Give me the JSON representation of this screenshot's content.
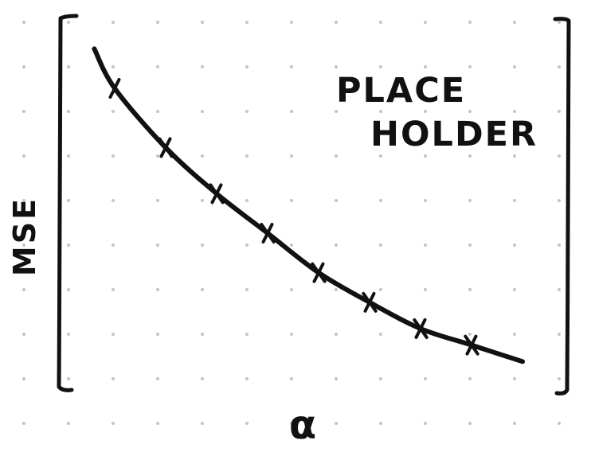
{
  "chart_data": {
    "type": "line",
    "title": "",
    "xlabel": "α",
    "ylabel": "MSE",
    "annotation": "PLACE HOLDER",
    "annotation_lines": [
      "PLACE",
      "HOLDER"
    ],
    "x": [
      1,
      2,
      3,
      4,
      5,
      6,
      7,
      8
    ],
    "series": [
      {
        "values": [
          88,
          70,
          56,
          44,
          32,
          23,
          15,
          10
        ],
        "marker": "x"
      }
    ],
    "curve_start": {
      "x": 0.6,
      "y": 100
    },
    "curve_end": {
      "x": 9,
      "y": 5
    },
    "xlim": [
      0,
      10
    ],
    "ylim": [
      0,
      110
    ],
    "grid": "dotted",
    "legend": "none",
    "ticks": "none",
    "style": "hand-drawn sketch"
  },
  "colors": {
    "ink": "#111111",
    "grid_dot": "#c4c4c4",
    "background": "#ffffff"
  }
}
